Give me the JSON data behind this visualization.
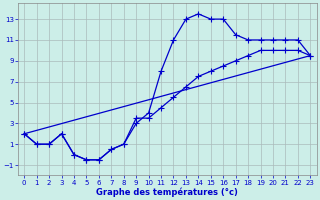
{
  "xlabel": "Graphe des températures (°c)",
  "bg_color": "#cceee8",
  "line_color": "#0000cc",
  "grid_color": "#aabbbb",
  "xlim": [
    -0.5,
    23.5
  ],
  "ylim": [
    -2.0,
    14.5
  ],
  "xticks": [
    0,
    1,
    2,
    3,
    4,
    5,
    6,
    7,
    8,
    9,
    10,
    11,
    12,
    13,
    14,
    15,
    16,
    17,
    18,
    19,
    20,
    21,
    22,
    23
  ],
  "yticks": [
    -1,
    1,
    3,
    5,
    7,
    9,
    11,
    13
  ],
  "curve1_x": [
    0,
    1,
    2,
    3,
    4,
    5,
    6,
    7,
    8,
    9,
    10,
    11,
    12,
    13,
    14,
    15,
    16,
    17,
    18,
    19,
    20,
    21,
    22,
    23
  ],
  "curve1_y": [
    2,
    1,
    1,
    2,
    0,
    -0.5,
    -0.5,
    0.5,
    1,
    3,
    4,
    8,
    11,
    13,
    13.5,
    13,
    13,
    11.5,
    11,
    11,
    11,
    11,
    11,
    9.5
  ],
  "curve2_x": [
    0,
    1,
    2,
    3,
    4,
    5,
    6,
    7,
    8,
    9,
    10,
    11,
    12,
    13,
    14,
    15,
    16,
    17,
    18,
    19,
    20,
    21,
    22,
    23
  ],
  "curve2_y": [
    2,
    1,
    1,
    2,
    0,
    -0.5,
    -0.5,
    0.5,
    1,
    3.5,
    3.5,
    4.5,
    5.5,
    6.5,
    7.5,
    8,
    8.5,
    9,
    9.5,
    10,
    10,
    10,
    10,
    9.5
  ],
  "line3_x": [
    0,
    23
  ],
  "line3_y": [
    2,
    9.5
  ]
}
